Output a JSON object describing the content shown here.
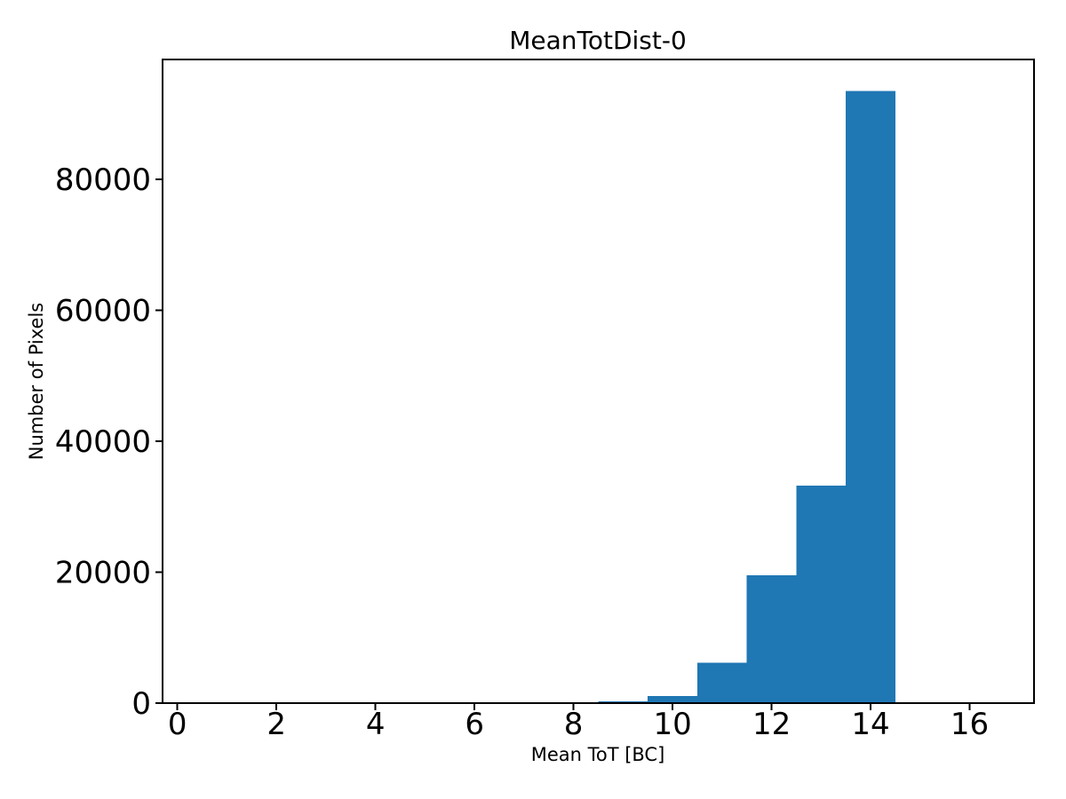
{
  "figure": {
    "title": "MeanTotDist-0",
    "xlabel": "Mean ToT [BC]",
    "ylabel": "Number of Pixels"
  },
  "chart_data": {
    "type": "bar",
    "subtype": "histogram",
    "title": "MeanTotDist-0",
    "xlabel": "Mean ToT [BC]",
    "ylabel": "Number of Pixels",
    "bin_edges": [
      8.5,
      9.5,
      10.5,
      11.5,
      12.5,
      13.5,
      14.5
    ],
    "counts": [
      270,
      1080,
      6200,
      19500,
      33200,
      93500
    ],
    "bar_color": "#1f77b4",
    "xlim": [
      -0.3,
      17.3
    ],
    "ylim": [
      0,
      98300
    ],
    "xticks": [
      0,
      2,
      4,
      6,
      8,
      10,
      12,
      14,
      16
    ],
    "yticks": [
      0,
      20000,
      40000,
      60000,
      80000
    ],
    "grid": false,
    "legend": null
  }
}
